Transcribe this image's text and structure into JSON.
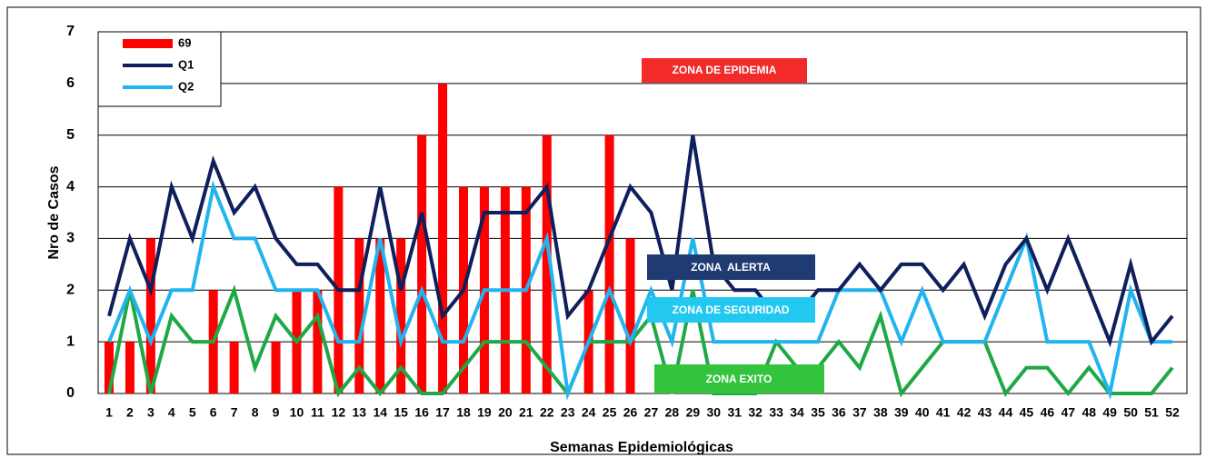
{
  "chart_data": {
    "type": "bar",
    "x_label": "Semanas Epidemiológicas",
    "y_label": "Nro de Casos",
    "categories": [
      "1",
      "2",
      "3",
      "4",
      "5",
      "6",
      "7",
      "8",
      "9",
      "10",
      "11",
      "12",
      "13",
      "14",
      "15",
      "16",
      "17",
      "18",
      "19",
      "20",
      "21",
      "22",
      "23",
      "24",
      "25",
      "26",
      "27",
      "28",
      "29",
      "30",
      "31",
      "32",
      "33",
      "34",
      "35",
      "36",
      "37",
      "38",
      "39",
      "40",
      "41",
      "42",
      "43",
      "44",
      "45",
      "46",
      "47",
      "48",
      "49",
      "50",
      "51",
      "52"
    ],
    "series": [
      {
        "name": "69",
        "type": "bar",
        "color": "#ff0000",
        "values": [
          1,
          1,
          3,
          0,
          0,
          2,
          1,
          0,
          1,
          2,
          2,
          4,
          3,
          3,
          3,
          5,
          6,
          4,
          4,
          4,
          4,
          5,
          0,
          2,
          5,
          3,
          0,
          0,
          0,
          0,
          0,
          0,
          0,
          0,
          0,
          0,
          0,
          0,
          0,
          0,
          0,
          0,
          0,
          0,
          0,
          0,
          0,
          0,
          0,
          0,
          0,
          0
        ]
      },
      {
        "name": "Q1",
        "type": "line",
        "color": "#0f1f5c",
        "values": [
          1.5,
          3,
          2,
          4,
          3,
          4.5,
          3.5,
          4,
          3,
          2.5,
          2.5,
          2,
          2,
          4,
          2,
          3.5,
          1.5,
          2,
          3.5,
          3.5,
          3.5,
          4,
          1.5,
          2,
          3,
          4,
          3.5,
          2,
          5,
          2.5,
          2,
          2,
          1.5,
          1.5,
          2,
          2,
          2.5,
          2,
          2.5,
          2.5,
          2,
          2.5,
          1.5,
          2.5,
          3,
          2,
          3,
          2,
          1,
          2.5,
          1,
          1.5
        ]
      },
      {
        "name": "Q2",
        "type": "line",
        "color": "#22b4ee",
        "values": [
          1,
          2,
          1,
          2,
          2,
          4,
          3,
          3,
          2,
          2,
          2,
          1,
          1,
          3,
          1,
          2,
          1,
          1,
          2,
          2,
          2,
          3,
          0,
          1,
          2,
          1,
          2,
          1,
          3,
          1,
          1,
          1,
          1,
          1,
          1,
          2,
          2,
          2,
          1,
          2,
          1,
          1,
          1,
          2,
          3,
          1,
          1,
          1,
          0,
          2,
          1,
          1
        ]
      },
      {
        "type": "line",
        "color": "#1fa846",
        "values": [
          0,
          2,
          0,
          1.5,
          1,
          1,
          2,
          0.5,
          1.5,
          1,
          1.5,
          0,
          0.5,
          0,
          0.5,
          0,
          0,
          0.5,
          1,
          1,
          1,
          0.5,
          0,
          1,
          1,
          1,
          1.5,
          0,
          2,
          0,
          0,
          0,
          1,
          0.5,
          0.5,
          1,
          0.5,
          1.5,
          0,
          0.5,
          1,
          1,
          1,
          0,
          0.5,
          0.5,
          0,
          0.5,
          0,
          0,
          0,
          0.5
        ]
      }
    ],
    "annotations": [
      "ZONA DE EPIDEMIA",
      "ZONA  ALERTA",
      "ZONA DE SEGURIDAD",
      "ZONA EXITO"
    ],
    "ylim": [
      0,
      7
    ],
    "yticks": [
      0,
      1,
      2,
      3,
      4,
      5,
      6,
      7
    ],
    "grid": true,
    "legend": "top-left"
  }
}
